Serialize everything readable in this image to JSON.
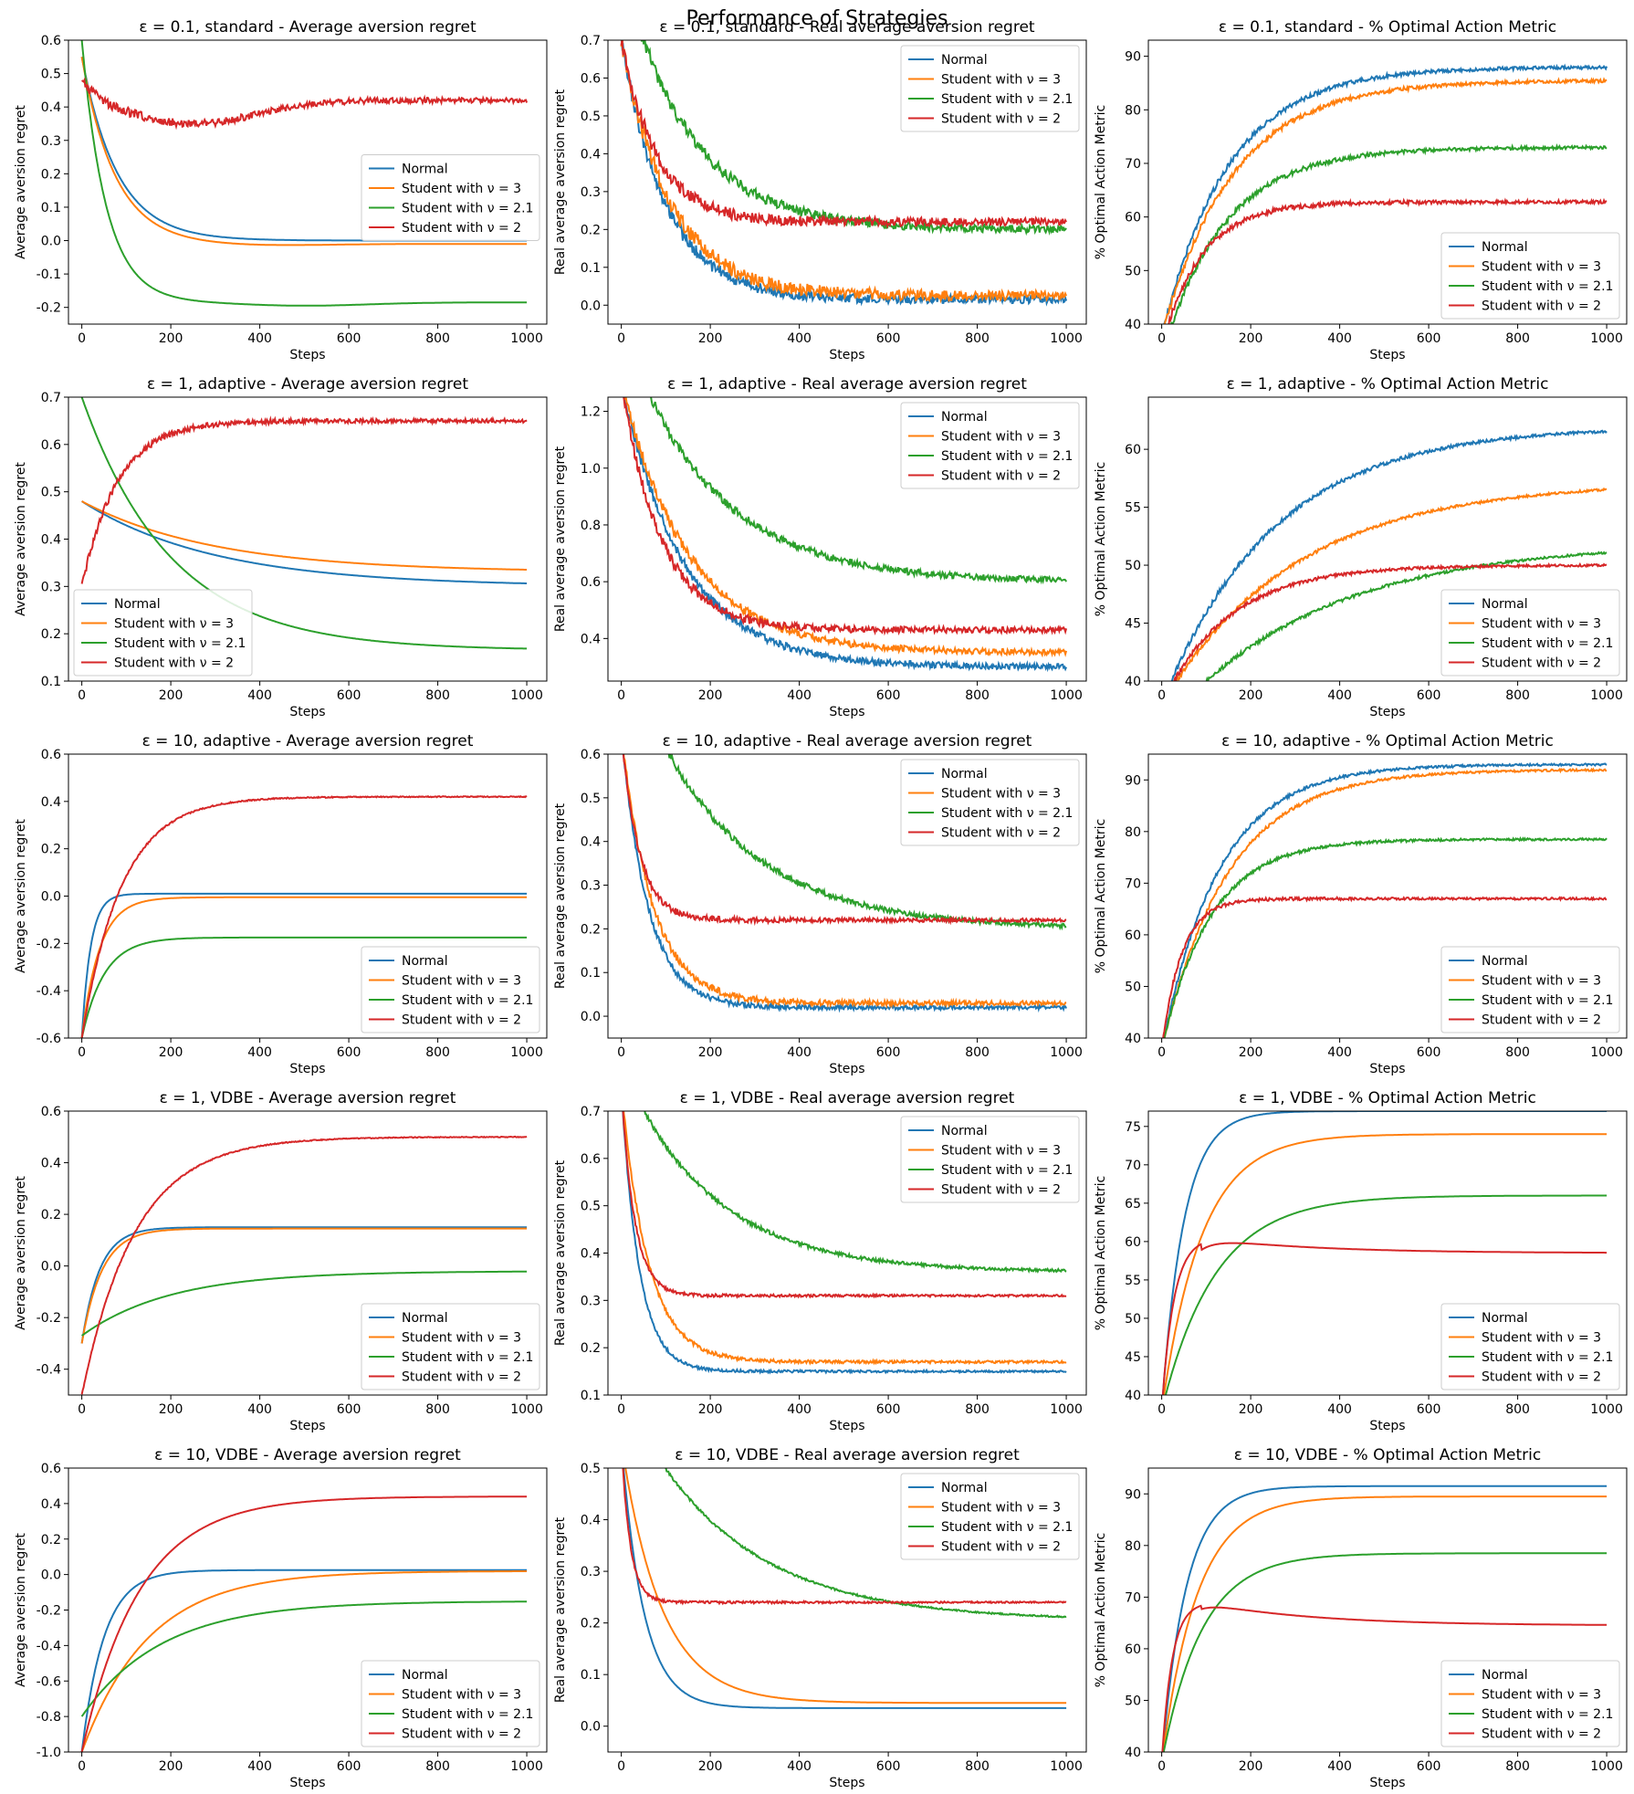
{
  "figure": {
    "suptitle": "Performance of Strategies"
  },
  "colors": {
    "Normal": "#1f77b4",
    "Student3": "#ff7f0e",
    "Student21": "#2ca02c",
    "Student2": "#d62728"
  },
  "legend_labels": [
    "Normal",
    "Student with ν = 3",
    "Student with ν = 2.1",
    "Student with ν = 2"
  ],
  "chart_data": [
    {
      "type": "line",
      "title": "ε = 0.1, standard - Average aversion regret",
      "xlabel": "Steps",
      "ylabel": "Average aversion regret",
      "xlim": [
        -30,
        1045
      ],
      "ylim": [
        -0.25,
        0.6
      ],
      "yticks": [
        -0.2,
        -0.1,
        0.0,
        0.1,
        0.2,
        0.3,
        0.4,
        0.5,
        0.6
      ],
      "yfmt": 1,
      "legend": "center-right",
      "series": [
        {
          "key": "Normal",
          "start": 0.55,
          "end": 0.0,
          "tau": 80
        },
        {
          "key": "Student3",
          "start": 0.55,
          "end": -0.01,
          "tau": 75,
          "dip": -0.015,
          "dipAt": 400
        },
        {
          "key": "Student21",
          "start": 0.6,
          "end": -0.185,
          "tau": 55,
          "dip": -0.195,
          "dipAt": 500
        },
        {
          "key": "Student2",
          "start": 0.5,
          "end": 0.42,
          "tau": 40,
          "dip": 0.35,
          "dipAt": 250,
          "noise": 0.015
        }
      ]
    },
    {
      "type": "line",
      "title": "ε = 0.1, standard - Real average aversion regret",
      "xlabel": "Steps",
      "ylabel": "Real average aversion regret",
      "xlim": [
        -30,
        1045
      ],
      "ylim": [
        -0.05,
        0.7
      ],
      "yticks": [
        0.0,
        0.1,
        0.2,
        0.3,
        0.4,
        0.5,
        0.6,
        0.7
      ],
      "yfmt": 1,
      "legend": "upper-right",
      "series": [
        {
          "key": "Normal",
          "start": 0.7,
          "end": 0.015,
          "tau": 100,
          "noise": 0.02
        },
        {
          "key": "Student3",
          "start": 0.7,
          "end": 0.025,
          "tau": 110,
          "noise": 0.025
        },
        {
          "key": "Student21",
          "start": 0.9,
          "end": 0.2,
          "tau": 150,
          "noise": 0.02
        },
        {
          "key": "Student2",
          "start": 0.7,
          "end": 0.22,
          "tau": 80,
          "noise": 0.02
        }
      ]
    },
    {
      "type": "line",
      "title": "ε = 0.1, standard - % Optimal Action Metric",
      "xlabel": "Steps",
      "ylabel": "% Optimal Action Metric",
      "xlim": [
        -30,
        1045
      ],
      "ylim": [
        40,
        93
      ],
      "yticks": [
        40,
        50,
        60,
        70,
        80,
        90
      ],
      "yfmt": 0,
      "legend": "lower-right",
      "series": [
        {
          "key": "Normal",
          "start": 38,
          "end": 88,
          "tau": 150,
          "noise": 0.6
        },
        {
          "key": "Student3",
          "start": 38,
          "end": 85.5,
          "tau": 160,
          "noise": 0.6
        },
        {
          "key": "Student21",
          "start": 34,
          "end": 73,
          "tau": 140,
          "noise": 0.6
        },
        {
          "key": "Student2",
          "start": 36,
          "end": 62.8,
          "tau": 90,
          "noise": 0.6
        }
      ]
    },
    {
      "type": "line",
      "title": "ε = 1, adaptive - Average aversion regret",
      "xlabel": "Steps",
      "ylabel": "Average aversion regret",
      "xlim": [
        -30,
        1045
      ],
      "ylim": [
        0.1,
        0.7
      ],
      "yticks": [
        0.1,
        0.2,
        0.3,
        0.4,
        0.5,
        0.6,
        0.7
      ],
      "yfmt": 1,
      "legend": "lower-left",
      "series": [
        {
          "key": "Normal",
          "start": 0.48,
          "end": 0.3,
          "tau": 300
        },
        {
          "key": "Student3",
          "start": 0.48,
          "end": 0.33,
          "tau": 300
        },
        {
          "key": "Student21",
          "start": 0.7,
          "end": 0.165,
          "tau": 200
        },
        {
          "key": "Student2",
          "start": 0.3,
          "end": 0.65,
          "tau": 80,
          "noise": 0.008
        }
      ]
    },
    {
      "type": "line",
      "title": "ε = 1, adaptive - Real average aversion regret",
      "xlabel": "Steps",
      "ylabel": "Real average aversion regret",
      "xlim": [
        -30,
        1045
      ],
      "ylim": [
        0.25,
        1.25
      ],
      "yticks": [
        0.4,
        0.6,
        0.8,
        1.0,
        1.2
      ],
      "yfmt": 1,
      "legend": "upper-right",
      "series": [
        {
          "key": "Normal",
          "start": 1.3,
          "end": 0.3,
          "tau": 140,
          "noise": 0.02
        },
        {
          "key": "Student3",
          "start": 1.3,
          "end": 0.35,
          "tau": 150,
          "noise": 0.02
        },
        {
          "key": "Student21",
          "start": 1.5,
          "end": 0.6,
          "tau": 200,
          "noise": 0.02
        },
        {
          "key": "Student2",
          "start": 1.3,
          "end": 0.43,
          "tau": 90,
          "noise": 0.02
        }
      ]
    },
    {
      "type": "line",
      "title": "ε = 1, adaptive - % Optimal Action Metric",
      "xlabel": "Steps",
      "ylabel": "% Optimal Action Metric",
      "xlim": [
        -30,
        1045
      ],
      "ylim": [
        40,
        64.5
      ],
      "yticks": [
        40,
        45,
        50,
        55,
        60
      ],
      "yfmt": 0,
      "legend": "lower-right",
      "series": [
        {
          "key": "Normal",
          "start": 38,
          "end": 62,
          "tau": 250,
          "noise": 0.25
        },
        {
          "key": "Student3",
          "start": 38,
          "end": 57.2,
          "tau": 300,
          "noise": 0.2
        },
        {
          "key": "Student21",
          "start": 36,
          "end": 52,
          "tau": 350,
          "noise": 0.2
        },
        {
          "key": "Student2",
          "start": 38,
          "end": 50,
          "tau": 150,
          "noise": 0.2
        }
      ]
    },
    {
      "type": "line",
      "title": "ε = 10, adaptive - Average aversion regret",
      "xlabel": "Steps",
      "ylabel": "Average aversion regret",
      "xlim": [
        -30,
        1045
      ],
      "ylim": [
        -0.6,
        0.6
      ],
      "yticks": [
        -0.6,
        -0.4,
        -0.2,
        0.0,
        0.2,
        0.4,
        0.6
      ],
      "yfmt": 1,
      "legend": "lower-right",
      "series": [
        {
          "key": "Normal",
          "start": -0.6,
          "end": 0.01,
          "tau": 20
        },
        {
          "key": "Student3",
          "start": -0.6,
          "end": -0.005,
          "tau": 40
        },
        {
          "key": "Student21",
          "start": -0.6,
          "end": -0.175,
          "tau": 50
        },
        {
          "key": "Student2",
          "start": -0.6,
          "end": 0.42,
          "tau": 90,
          "noise": 0.004
        }
      ]
    },
    {
      "type": "line",
      "title": "ε = 10, adaptive - Real average aversion regret",
      "xlabel": "Steps",
      "ylabel": "Real average aversion regret",
      "xlim": [
        -30,
        1045
      ],
      "ylim": [
        -0.05,
        0.6
      ],
      "yticks": [
        0.0,
        0.1,
        0.2,
        0.3,
        0.4,
        0.5,
        0.6
      ],
      "yfmt": 1,
      "legend": "upper-right",
      "series": [
        {
          "key": "Normal",
          "start": 0.65,
          "end": 0.02,
          "tau": 60,
          "noise": 0.008
        },
        {
          "key": "Student3",
          "start": 0.65,
          "end": 0.03,
          "tau": 70,
          "noise": 0.01
        },
        {
          "key": "Student21",
          "start": 0.85,
          "end": 0.2,
          "tau": 220,
          "noise": 0.01
        },
        {
          "key": "Student2",
          "start": 0.65,
          "end": 0.22,
          "tau": 40,
          "noise": 0.008
        }
      ]
    },
    {
      "type": "line",
      "title": "ε = 10, adaptive - % Optimal Action Metric",
      "xlabel": "Steps",
      "ylabel": "% Optimal Action Metric",
      "xlim": [
        -30,
        1045
      ],
      "ylim": [
        40,
        95
      ],
      "yticks": [
        40,
        50,
        60,
        70,
        80,
        90
      ],
      "yfmt": 0,
      "legend": "lower-right",
      "series": [
        {
          "key": "Normal",
          "start": 38,
          "end": 93,
          "tau": 130,
          "noise": 0.4
        },
        {
          "key": "Student3",
          "start": 38,
          "end": 92,
          "tau": 150,
          "noise": 0.4
        },
        {
          "key": "Student21",
          "start": 38,
          "end": 78.5,
          "tau": 110,
          "noise": 0.4
        },
        {
          "key": "Student2",
          "start": 38,
          "end": 67,
          "tau": 45,
          "noise": 0.4
        }
      ]
    },
    {
      "type": "line",
      "title": "ε = 1, VDBE - Average aversion regret",
      "xlabel": "Steps",
      "ylabel": "Average aversion regret",
      "xlim": [
        -30,
        1045
      ],
      "ylim": [
        -0.5,
        0.6
      ],
      "yticks": [
        -0.4,
        -0.2,
        0.0,
        0.2,
        0.4,
        0.6
      ],
      "yfmt": 1,
      "legend": "lower-right",
      "series": [
        {
          "key": "Normal",
          "start": -0.3,
          "end": 0.15,
          "tau": 40
        },
        {
          "key": "Student3",
          "start": -0.3,
          "end": 0.145,
          "tau": 45
        },
        {
          "key": "Student21",
          "start": -0.27,
          "end": -0.02,
          "tau": 200
        },
        {
          "key": "Student2",
          "start": -0.5,
          "end": 0.5,
          "tau": 120,
          "noise": 0.003
        }
      ]
    },
    {
      "type": "line",
      "title": "ε = 1, VDBE - Real average aversion regret",
      "xlabel": "Steps",
      "ylabel": "Real average aversion regret",
      "xlim": [
        -30,
        1045
      ],
      "ylim": [
        0.1,
        0.7
      ],
      "yticks": [
        0.1,
        0.2,
        0.3,
        0.4,
        0.5,
        0.6,
        0.7
      ],
      "yfmt": 1,
      "legend": "upper-right",
      "series": [
        {
          "key": "Normal",
          "start": 0.75,
          "end": 0.15,
          "tau": 40,
          "noise": 0.004
        },
        {
          "key": "Student3",
          "start": 0.75,
          "end": 0.17,
          "tau": 60,
          "noise": 0.005
        },
        {
          "key": "Student21",
          "start": 0.8,
          "end": 0.36,
          "tau": 200,
          "noise": 0.006
        },
        {
          "key": "Student2",
          "start": 0.75,
          "end": 0.31,
          "tau": 30,
          "noise": 0.004
        }
      ]
    },
    {
      "type": "line",
      "title": "ε = 1, VDBE - % Optimal Action Metric",
      "xlabel": "Steps",
      "ylabel": "% Optimal Action Metric",
      "xlim": [
        -30,
        1045
      ],
      "ylim": [
        40,
        77
      ],
      "yticks": [
        40,
        45,
        50,
        55,
        60,
        65,
        70,
        75
      ],
      "yfmt": 0,
      "legend": "lower-right",
      "series": [
        {
          "key": "Normal",
          "start": 38,
          "end": 77,
          "tau": 50
        },
        {
          "key": "Student3",
          "start": 38,
          "end": 74,
          "tau": 90
        },
        {
          "key": "Student21",
          "start": 38,
          "end": 66,
          "tau": 120
        },
        {
          "key": "Student2",
          "start": 38,
          "end": 58.5,
          "tau": 35,
          "hump": 60.5,
          "humpAt": 90
        }
      ]
    },
    {
      "type": "line",
      "title": "ε = 10, VDBE - Average aversion regret",
      "xlabel": "Steps",
      "ylabel": "Average aversion regret",
      "xlim": [
        -30,
        1045
      ],
      "ylim": [
        -1.0,
        0.6
      ],
      "yticks": [
        -1.0,
        -0.8,
        -0.6,
        -0.4,
        -0.2,
        0.0,
        0.2,
        0.4,
        0.6
      ],
      "yfmt": 1,
      "legend": "lower-right",
      "series": [
        {
          "key": "Normal",
          "start": -1.0,
          "end": 0.025,
          "tau": 50
        },
        {
          "key": "Student3",
          "start": -1.0,
          "end": 0.02,
          "tau": 150
        },
        {
          "key": "Student21",
          "start": -0.8,
          "end": -0.15,
          "tau": 180
        },
        {
          "key": "Student2",
          "start": -1.0,
          "end": 0.44,
          "tau": 130
        }
      ]
    },
    {
      "type": "line",
      "title": "ε = 10, VDBE - Real average aversion regret",
      "xlabel": "Steps",
      "ylabel": "Real average aversion regret",
      "xlim": [
        -30,
        1045
      ],
      "ylim": [
        -0.05,
        0.5
      ],
      "yticks": [
        0.0,
        0.1,
        0.2,
        0.3,
        0.4,
        0.5
      ],
      "yfmt": 1,
      "legend": "upper-right",
      "series": [
        {
          "key": "Normal",
          "start": 0.55,
          "end": 0.035,
          "tau": 50
        },
        {
          "key": "Student3",
          "start": 0.55,
          "end": 0.045,
          "tau": 90
        },
        {
          "key": "Student21",
          "start": 0.65,
          "end": 0.205,
          "tau": 240,
          "noise": 0.003
        },
        {
          "key": "Student2",
          "start": 0.55,
          "end": 0.24,
          "tau": 20,
          "noise": 0.003
        }
      ]
    },
    {
      "type": "line",
      "title": "ε = 10, VDBE - % Optimal Action Metric",
      "xlabel": "Steps",
      "ylabel": "% Optimal Action Metric",
      "xlim": [
        -30,
        1045
      ],
      "ylim": [
        40,
        95
      ],
      "yticks": [
        40,
        50,
        60,
        70,
        80,
        90
      ],
      "yfmt": 0,
      "legend": "lower-right",
      "series": [
        {
          "key": "Normal",
          "start": 38,
          "end": 91.5,
          "tau": 55
        },
        {
          "key": "Student3",
          "start": 38,
          "end": 89.5,
          "tau": 80
        },
        {
          "key": "Student21",
          "start": 38,
          "end": 78.5,
          "tau": 90
        },
        {
          "key": "Student2",
          "start": 38,
          "end": 64.5,
          "tau": 30,
          "hump": 69,
          "humpAt": 90
        }
      ]
    }
  ]
}
